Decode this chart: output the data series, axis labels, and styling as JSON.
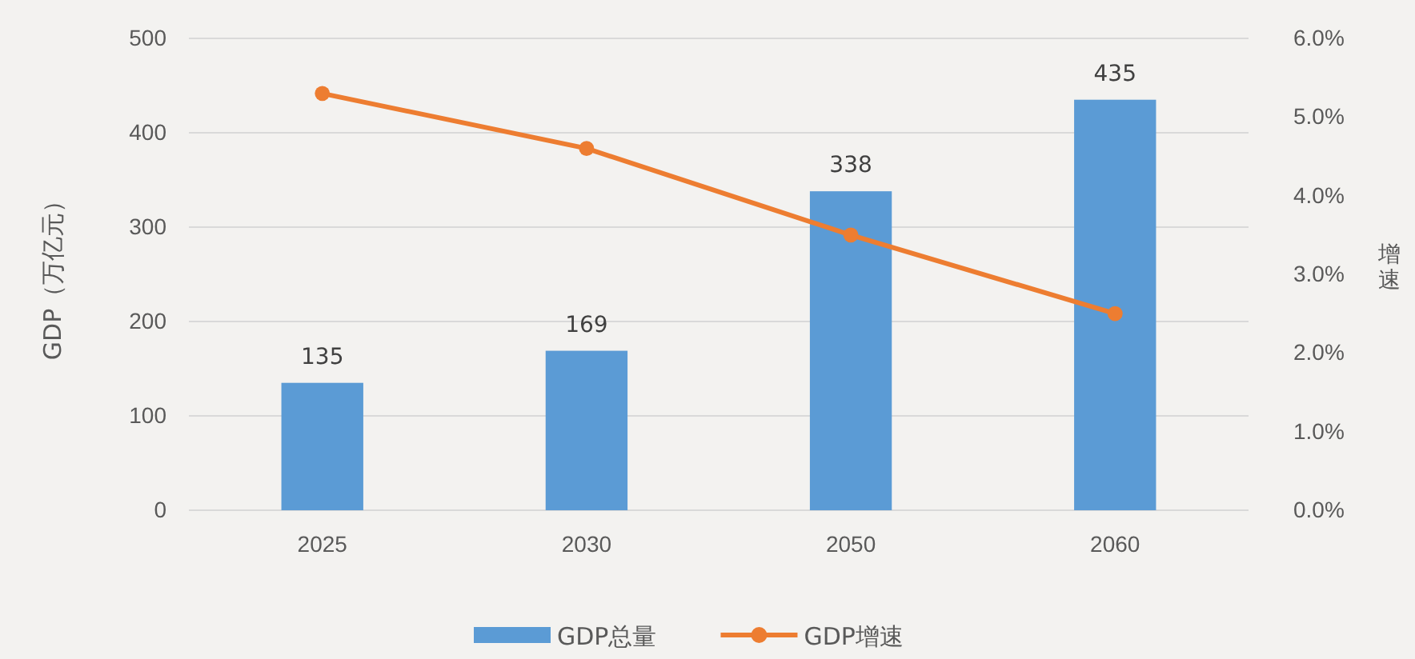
{
  "chart_data": {
    "type": "bar",
    "categories": [
      "2025",
      "2030",
      "2050",
      "2060"
    ],
    "ylabel": "GDP（万亿元）",
    "y2label": "增速",
    "series": [
      {
        "name": "GDP总量",
        "color": "#5b9bd5",
        "values": [
          135,
          169,
          338,
          435
        ]
      },
      {
        "name": "GDP增速",
        "type": "line",
        "axis": "y2",
        "color": "#ed7d31",
        "values": [
          5.3,
          4.6,
          3.5,
          2.5
        ]
      }
    ],
    "value_labels": [
      "135",
      "169",
      "338",
      "435"
    ],
    "ylim": [
      0,
      500
    ],
    "yticks": [
      0,
      100,
      200,
      300,
      400,
      500
    ],
    "y2lim": [
      0,
      6
    ],
    "y2ticks": [
      {
        "value": 0,
        "label": "0.0%"
      },
      {
        "value": 1,
        "label": "1.0%"
      },
      {
        "value": 2,
        "label": "2.0%"
      },
      {
        "value": 3,
        "label": "3.0%"
      },
      {
        "value": 4,
        "label": "4.0%"
      },
      {
        "value": 5,
        "label": "5.0%"
      },
      {
        "value": 6,
        "label": "6.0%"
      }
    ],
    "grid": "y",
    "legend": "bottom",
    "marker": "circle"
  }
}
